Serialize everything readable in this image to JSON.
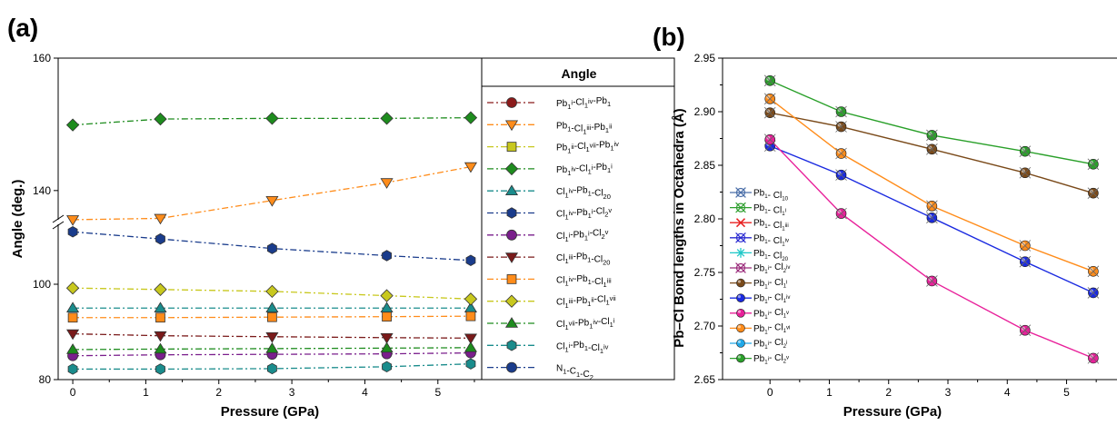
{
  "panels": [
    {
      "tag": "(a)"
    },
    {
      "tag": "(b)"
    }
  ],
  "chart_data": [
    {
      "type": "line",
      "xlabel": "Pressure (GPa)",
      "ylabel": "Angle (deg.)",
      "legend_title": "Angle",
      "legend_position": "right",
      "axis_break": [
        112,
        136
      ],
      "xlim": [
        -0.2,
        5.6
      ],
      "xticks": [
        0,
        1,
        2,
        3,
        4,
        5
      ],
      "yticks": [
        80,
        100,
        140,
        160
      ],
      "x": [
        0,
        1.2,
        2.73,
        4.3,
        5.45
      ],
      "series": [
        {
          "label": "Pb1i-Cl1iv-Pb1",
          "color": "#8b1a1a",
          "marker": "circle",
          "values": [
            null,
            null,
            null,
            null,
            null
          ]
        },
        {
          "label": "Pb1-Cl1iii-Pb1ii",
          "color": "#ff8c1a",
          "marker": "triangle-down",
          "values": [
            135.6,
            135.8,
            138.5,
            141.2,
            143.6
          ]
        },
        {
          "label": "Pb1ii-Cl1vii-Pb1iv",
          "color": "#c8c81e",
          "marker": "square",
          "values": [
            null,
            null,
            null,
            null,
            null
          ]
        },
        {
          "label": "Pb1iv-Cl1i-Pb1i",
          "color": "#1e8c1e",
          "marker": "diamond",
          "values": [
            149.9,
            150.8,
            150.9,
            150.9,
            151.0
          ]
        },
        {
          "label": "Cl1iv-Pb1-Cl20",
          "color": "#1a8c8c",
          "marker": "triangle-up",
          "values": [
            95.0,
            95.0,
            95.0,
            95.0,
            95.0
          ]
        },
        {
          "label": "Cl1iv-Pb1i-Cl2v",
          "color": "#1a3c8c",
          "marker": "hexagon",
          "values": [
            111.0,
            109.5,
            107.5,
            106.0,
            105.0
          ]
        },
        {
          "label": "Cl1i-Pb1i-Cl2v",
          "color": "#7a1e8c",
          "marker": "circle",
          "values": [
            85.0,
            85.2,
            85.3,
            85.4,
            85.6
          ]
        },
        {
          "label": "Cl1iii-Pb1-Cl20",
          "color": "#7a1a1a",
          "marker": "triangle-down",
          "values": [
            89.6,
            89.2,
            89.0,
            88.8,
            88.7
          ]
        },
        {
          "label": "Cl1iv-Pb1-Cl1iii",
          "color": "#ff8c1a",
          "marker": "square",
          "values": [
            93.0,
            93.0,
            93.1,
            93.2,
            93.3
          ]
        },
        {
          "label": "Cl1iii-Pb1ii-Cl1vii",
          "color": "#c8c81e",
          "marker": "diamond",
          "values": [
            99.2,
            98.9,
            98.5,
            97.6,
            96.9
          ]
        },
        {
          "label": "Cl1vii-Pb1iv-Cl1i",
          "color": "#1e8c1e",
          "marker": "triangle-up",
          "values": [
            86.3,
            86.4,
            86.5,
            86.6,
            86.7
          ]
        },
        {
          "label": "Cl1i-Pb1-Cl1iv",
          "color": "#1a8c8c",
          "marker": "hexagon",
          "values": [
            82.2,
            82.2,
            82.3,
            82.7,
            83.3
          ]
        },
        {
          "label": "N1-C1-C2",
          "color": "#1a3c8c",
          "marker": "circle",
          "values": [
            null,
            null,
            null,
            null,
            null
          ]
        }
      ]
    },
    {
      "type": "line",
      "xlabel": "Pressure (GPa)",
      "ylabel": "Pb–Cl Bond lengths in Octahedra (Å)",
      "legend_position": "bottom-left",
      "xlim": [
        -0.8,
        5.85
      ],
      "ylim": [
        2.65,
        2.95
      ],
      "xticks": [
        0,
        1,
        2,
        3,
        4,
        5
      ],
      "yticks": [
        2.65,
        2.7,
        2.75,
        2.8,
        2.85,
        2.9,
        2.95
      ],
      "x": [
        0,
        1.2,
        2.73,
        4.3,
        5.45
      ],
      "series": [
        {
          "label": "Pb1- Cl10",
          "color": "#4a6ea8",
          "marker": "x-circle",
          "values": [
            null,
            null,
            null,
            null,
            null
          ]
        },
        {
          "label": "Pb1- Cl1i",
          "color": "#2e9e2e",
          "marker": "x-circle",
          "values": [
            null,
            null,
            null,
            null,
            null
          ]
        },
        {
          "label": "Pb1- Cl1iii",
          "color": "#e82020",
          "marker": "x",
          "values": [
            null,
            null,
            null,
            null,
            null
          ]
        },
        {
          "label": "Pb1- Cl1iv",
          "color": "#2a2ad0",
          "marker": "x-circle",
          "values": [
            null,
            null,
            null,
            null,
            null
          ]
        },
        {
          "label": "Pb1- Cl20",
          "color": "#20c8c8",
          "marker": "star",
          "values": [
            null,
            null,
            null,
            null,
            null
          ]
        },
        {
          "label": "Pb1i- Cl2iv",
          "color": "#9a2a7a",
          "marker": "x-circle",
          "values": [
            null,
            null,
            null,
            null,
            null
          ]
        },
        {
          "label": "Pb1i- Cl1i",
          "color": "#7a4a1a",
          "marker": "ball",
          "values": [
            2.899,
            2.886,
            2.865,
            2.843,
            2.824
          ]
        },
        {
          "label": "Pb1i- Cl1iv",
          "color": "#1a2ae0",
          "marker": "ball",
          "values": [
            2.868,
            2.841,
            2.801,
            2.76,
            2.731
          ]
        },
        {
          "label": "Pb1i- Cl1v",
          "color": "#e8209a",
          "marker": "ball",
          "values": [
            2.874,
            2.805,
            2.742,
            2.696,
            2.67
          ]
        },
        {
          "label": "Pb1i- Cl1vi",
          "color": "#ff8c1a",
          "marker": "ball",
          "values": [
            2.912,
            2.861,
            2.812,
            2.775,
            2.751
          ]
        },
        {
          "label": "Pb1i- Cl2i",
          "color": "#20a8e8",
          "marker": "ball",
          "values": [
            null,
            null,
            null,
            null,
            null
          ]
        },
        {
          "label": "Pb1i- Cl2v",
          "color": "#2aa02a",
          "marker": "ball",
          "values": [
            2.929,
            2.9,
            2.878,
            2.863,
            2.851
          ]
        }
      ]
    }
  ]
}
